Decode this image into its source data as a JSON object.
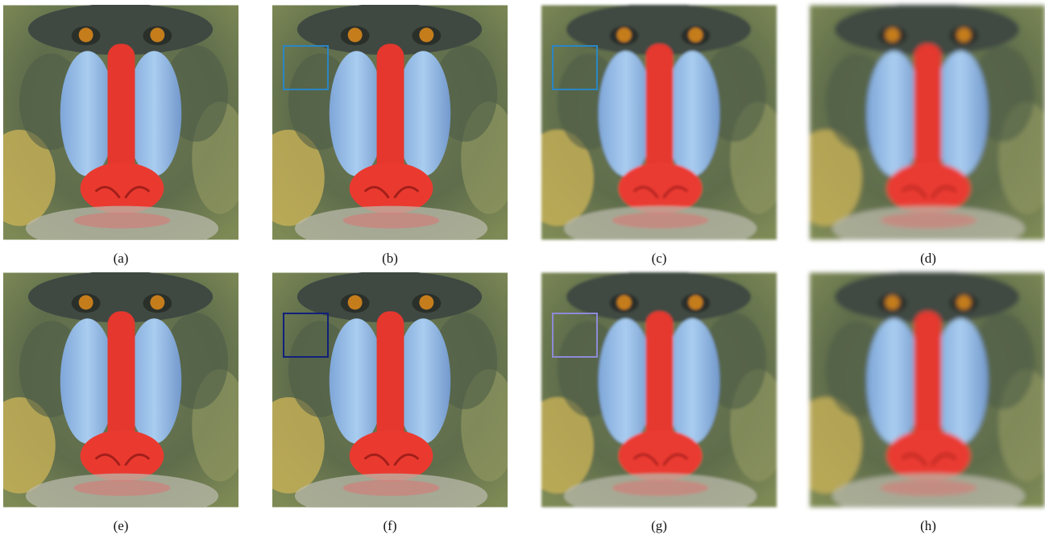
{
  "panels": [
    {
      "caption": "(a)"
    },
    {
      "caption": "(b)"
    },
    {
      "caption": "(c)"
    },
    {
      "caption": "(d)"
    },
    {
      "caption": "(e)"
    },
    {
      "caption": "(f)"
    },
    {
      "caption": "(g)"
    },
    {
      "caption": "(h)"
    }
  ]
}
